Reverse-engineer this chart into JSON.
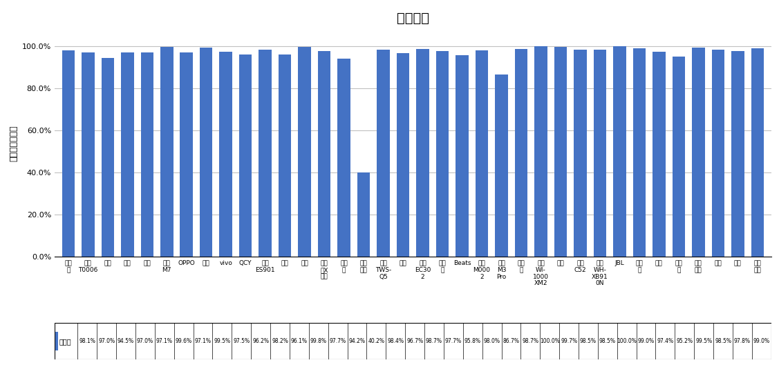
{
  "title": "通话降噪",
  "ylabel": "主观测试正确率",
  "categories": [
    "漫步\n者",
    "华为\nT0006",
    "苹果",
    "小米",
    "倍思",
    "酷狗\nM7",
    "OPPO",
    "荣耀",
    "vivo",
    "QCY",
    "万魔\nES901",
    "小度",
    "雷蛇",
    "漫步\n者X\n行心",
    "潮智\n能",
    "科大\n讯飞",
    "纽曼\nTWS-\nQ5",
    "三星",
    "万魔\nEC30\n2",
    "搜波\n朗",
    "Beats",
    "华为\nM000\n2",
    "酷狗\nM3\nPro",
    "爱国\n者",
    "索尼\nWI-\n1000\nXM2",
    "山水",
    "纽曼\nC52",
    "索尼\nWH-\nXB91\n0N",
    "JBL",
    "飞利\n浦",
    "联想",
    "铁三\n角",
    "森海\n塞尔",
    "博士",
    "索爱",
    "西伯\n利亚"
  ],
  "values": [
    98.1,
    97.0,
    94.5,
    97.0,
    97.1,
    99.6,
    97.1,
    99.5,
    97.5,
    96.2,
    98.2,
    96.1,
    99.8,
    97.7,
    94.2,
    40.2,
    98.4,
    96.7,
    98.7,
    97.7,
    95.8,
    98.0,
    86.7,
    98.7,
    100.0,
    99.7,
    98.5,
    98.5,
    100.0,
    99.0,
    97.4,
    95.2,
    99.5,
    98.5,
    97.8,
    99.0
  ],
  "bar_color": "#4472C4",
  "legend_label": "正确率",
  "yticks": [
    0,
    20,
    40,
    60,
    80,
    100
  ],
  "ytick_labels": [
    "0.0%",
    "20.0%",
    "40.0%",
    "60.0%",
    "80.0%",
    "100.0%"
  ],
  "grid_color": "#C0C0C0",
  "title_fontsize": 14,
  "tick_fontsize": 6.5,
  "value_fontsize": 5.5
}
